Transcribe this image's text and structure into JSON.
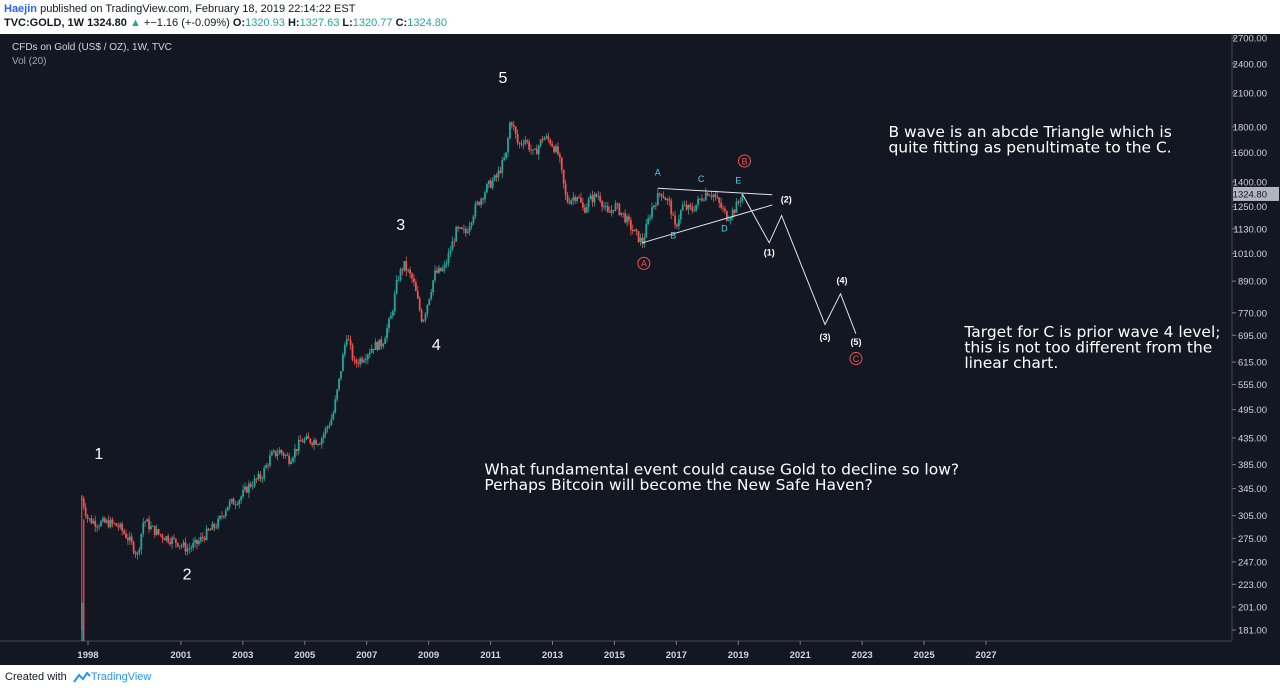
{
  "header": {
    "author": "Haejin",
    "published_text": "published on TradingView.com, February 18, 2019 22:14:22 EST",
    "symbol": "TVC:GOLD, 1W",
    "last": "1324.80",
    "change_arrow": "▲",
    "change": "+−1.16 (+-0.09%)",
    "open_label": "O:",
    "open": "1320.93",
    "high_label": "H:",
    "high": "1327.63",
    "low_label": "L:",
    "low": "1320.77",
    "close_label": "C:",
    "close": "1324.80"
  },
  "footer": {
    "created_with": "Created with",
    "brand": "TradingView"
  },
  "colors": {
    "background": "#131722",
    "up": "#26a69a",
    "down": "#ef5350",
    "text": "#d1d4dc",
    "white": "#ffffff",
    "cyan": "#4dd0e1",
    "red_label": "#ef5350",
    "price_tag": "#b2b5be"
  },
  "chart_data": {
    "type": "line",
    "title": "CFDs on Gold (US$ / OZ), 1W, TVC",
    "indicator": "Vol (20)",
    "scale": "log",
    "ylim": [
      170,
      2800
    ],
    "xlim": [
      1997.5,
      2028.8
    ],
    "y_ticks": [
      "2700.00",
      "2400.00",
      "2100.00",
      "1800.00",
      "1600.00",
      "1400.00",
      "1250.00",
      "1130.00",
      "1010.00",
      "890.00",
      "770.00",
      "695.00",
      "615.00",
      "555.00",
      "495.00",
      "435.00",
      "385.00",
      "345.00",
      "305.00",
      "275.00",
      "247.00",
      "223.00",
      "201.00",
      "181.00"
    ],
    "x_ticks": [
      "1998",
      "2001",
      "2003",
      "2005",
      "2007",
      "2009",
      "2011",
      "2013",
      "2015",
      "2017",
      "2019",
      "2021",
      "2023",
      "2025",
      "2027"
    ],
    "last_price_label": "1324.80",
    "series": [
      {
        "values": [
          [
            1997.8,
            330
          ],
          [
            1998.0,
            300
          ],
          [
            1998.3,
            295
          ],
          [
            1998.7,
            295
          ],
          [
            1999.0,
            290
          ],
          [
            1999.3,
            275
          ],
          [
            1999.6,
            255
          ],
          [
            1999.8,
            300
          ],
          [
            2000.0,
            290
          ],
          [
            2000.3,
            280
          ],
          [
            2000.6,
            275
          ],
          [
            2000.9,
            270
          ],
          [
            2001.2,
            262
          ],
          [
            2001.5,
            268
          ],
          [
            2001.8,
            280
          ],
          [
            2002.2,
            295
          ],
          [
            2002.5,
            320
          ],
          [
            2002.9,
            330
          ],
          [
            2003.2,
            350
          ],
          [
            2003.6,
            365
          ],
          [
            2003.9,
            400
          ],
          [
            2004.2,
            410
          ],
          [
            2004.5,
            395
          ],
          [
            2004.9,
            430
          ],
          [
            2005.2,
            430
          ],
          [
            2005.5,
            430
          ],
          [
            2005.9,
            480
          ],
          [
            2006.1,
            560
          ],
          [
            2006.35,
            700
          ],
          [
            2006.6,
            610
          ],
          [
            2006.9,
            630
          ],
          [
            2007.2,
            660
          ],
          [
            2007.5,
            670
          ],
          [
            2007.8,
            760
          ],
          [
            2008.0,
            900
          ],
          [
            2008.2,
            960
          ],
          [
            2008.5,
            890
          ],
          [
            2008.8,
            740
          ],
          [
            2008.95,
            800
          ],
          [
            2009.2,
            920
          ],
          [
            2009.5,
            940
          ],
          [
            2009.9,
            1120
          ],
          [
            2010.2,
            1110
          ],
          [
            2010.5,
            1240
          ],
          [
            2010.9,
            1370
          ],
          [
            2011.2,
            1430
          ],
          [
            2011.5,
            1580
          ],
          [
            2011.65,
            1880
          ],
          [
            2011.9,
            1650
          ],
          [
            2012.1,
            1710
          ],
          [
            2012.4,
            1580
          ],
          [
            2012.7,
            1720
          ],
          [
            2012.95,
            1680
          ],
          [
            2013.2,
            1580
          ],
          [
            2013.45,
            1280
          ],
          [
            2013.8,
            1320
          ],
          [
            2014.0,
            1230
          ],
          [
            2014.2,
            1290
          ],
          [
            2014.5,
            1320
          ],
          [
            2014.8,
            1200
          ],
          [
            2015.0,
            1260
          ],
          [
            2015.3,
            1200
          ],
          [
            2015.6,
            1120
          ],
          [
            2015.9,
            1060
          ],
          [
            2016.2,
            1240
          ],
          [
            2016.5,
            1340
          ],
          [
            2016.8,
            1260
          ],
          [
            2016.95,
            1130
          ],
          [
            2017.2,
            1250
          ],
          [
            2017.5,
            1230
          ],
          [
            2017.8,
            1300
          ],
          [
            2018.0,
            1340
          ],
          [
            2018.2,
            1320
          ],
          [
            2018.5,
            1230
          ],
          [
            2018.65,
            1190
          ],
          [
            2018.9,
            1240
          ],
          [
            2019.13,
            1324.8
          ]
        ]
      }
    ],
    "triangle_lines": [
      [
        [
          2016.4,
          1360
        ],
        [
          2020.1,
          1320
        ]
      ],
      [
        [
          2015.9,
          1060
        ],
        [
          2020.1,
          1260
        ]
      ]
    ],
    "projection": [
      [
        2019.13,
        1324.8
      ],
      [
        2020.0,
        1060
      ],
      [
        2020.4,
        1200
      ],
      [
        2021.8,
        730
      ],
      [
        2022.3,
        840
      ],
      [
        2022.8,
        700
      ]
    ],
    "labels_wave": [
      {
        "text": "1",
        "x": 1998.35,
        "y": 395
      },
      {
        "text": "2",
        "x": 2001.2,
        "y": 228
      },
      {
        "text": "3",
        "x": 2008.1,
        "y": 1125
      },
      {
        "text": "4",
        "x": 2009.25,
        "y": 650
      },
      {
        "text": "5",
        "x": 2011.4,
        "y": 2200
      }
    ],
    "labels_abcde": [
      {
        "text": "A",
        "x": 2016.4,
        "y": 1440
      },
      {
        "text": "B",
        "x": 2016.9,
        "y": 1080
      },
      {
        "text": "C",
        "x": 2017.8,
        "y": 1400
      },
      {
        "text": "D",
        "x": 2018.55,
        "y": 1115
      },
      {
        "text": "E",
        "x": 2019.0,
        "y": 1390
      }
    ],
    "labels_projection": [
      {
        "text": "(1)",
        "x": 2020.0,
        "y": 1000
      },
      {
        "text": "(2)",
        "x": 2020.55,
        "y": 1275
      },
      {
        "text": "(3)",
        "x": 2021.8,
        "y": 680
      },
      {
        "text": "(4)",
        "x": 2022.35,
        "y": 880
      },
      {
        "text": "(5)",
        "x": 2022.8,
        "y": 665
      }
    ],
    "labels_circled": [
      {
        "text": "A",
        "x": 2015.95,
        "y": 965
      },
      {
        "text": "B",
        "x": 2019.2,
        "y": 1540
      },
      {
        "text": "C",
        "x": 2022.8,
        "y": 625
      }
    ],
    "annotations": [
      {
        "lines": [
          "B wave is an abcde Triangle which is",
          "quite fitting as penultimate to the C."
        ],
        "x": 2023.85,
        "y": 1720
      },
      {
        "lines": [
          "Target for C is prior wave 4 level;",
          "this is not too different from the",
          "linear chart."
        ],
        "x": 2026.3,
        "y": 690
      },
      {
        "lines": [
          "What fundamental event could cause Gold to decline so low?",
          "Perhaps Bitcoin will become the New Safe Haven?"
        ],
        "x": 2010.8,
        "y": 368
      }
    ]
  }
}
